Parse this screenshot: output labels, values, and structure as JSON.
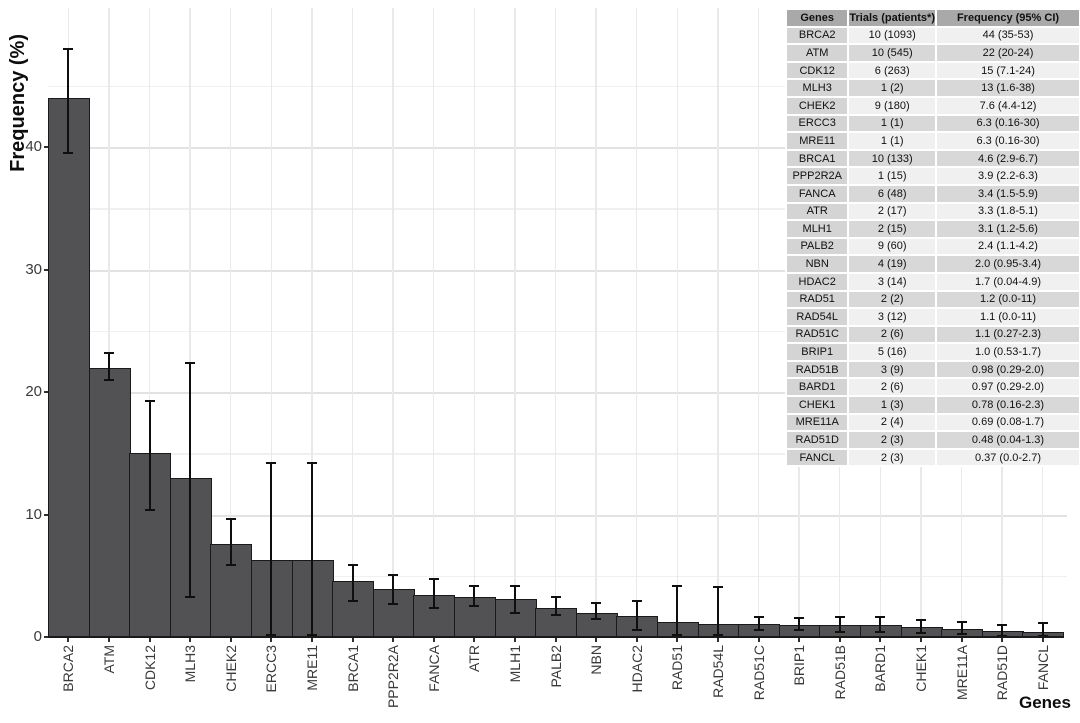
{
  "chart_data": {
    "type": "bar",
    "title": "",
    "xlabel": "Genes",
    "ylabel": "Frequency (%)",
    "ylim": [
      0,
      51.3
    ],
    "yticks": [
      0,
      10,
      20,
      30,
      40
    ],
    "minor_gridlines": [
      5,
      15,
      25,
      35,
      45
    ],
    "grid": true,
    "legend": "none",
    "categories": [
      "BRCA2",
      "ATM",
      "CDK12",
      "MLH3",
      "CHEK2",
      "ERCC3",
      "MRE11",
      "BRCA1",
      "PPP2R2A",
      "FANCA",
      "ATR",
      "MLH1",
      "PALB2",
      "NBN",
      "HDAC2",
      "RAD51",
      "RAD54L",
      "RAD51C",
      "BRIP1",
      "RAD51B",
      "BARD1",
      "CHEK1",
      "MRE11A",
      "RAD51D",
      "FANCL"
    ],
    "series": [
      {
        "name": "Frequency (%)",
        "values": [
          44,
          22,
          15,
          13,
          7.6,
          6.3,
          6.3,
          4.6,
          3.9,
          3.4,
          3.3,
          3.1,
          2.4,
          2.0,
          1.7,
          1.2,
          1.1,
          1.1,
          1.0,
          0.98,
          0.97,
          0.78,
          0.69,
          0.48,
          0.37
        ],
        "error_low": [
          39.5,
          21.0,
          10.4,
          3.3,
          5.9,
          0.15,
          0.15,
          2.9,
          2.7,
          2.4,
          2.5,
          2.0,
          1.8,
          1.5,
          0.55,
          0.15,
          0.15,
          0.55,
          0.6,
          0.4,
          0.4,
          0.3,
          0.25,
          0.12,
          0.05
        ],
        "error_high": [
          48.0,
          23.2,
          19.3,
          22.4,
          9.6,
          14.2,
          14.2,
          5.9,
          5.1,
          4.7,
          4.2,
          4.2,
          3.3,
          2.8,
          2.9,
          4.15,
          4.1,
          1.65,
          1.55,
          1.6,
          1.6,
          1.35,
          1.2,
          1.0,
          1.15
        ]
      }
    ],
    "colors": {
      "bar_fill": "#525254",
      "bar_border": "#1a1a1c",
      "error_bar": "#0f0f0f",
      "major_gridline": "#e2e2e2",
      "minor_gridline": "#f0f0f0",
      "vertical_gridline": "#e9e9e9",
      "axis_text": "#3a3a3a",
      "axis_line": "#1a1a1a"
    }
  },
  "table": {
    "headers": [
      "Genes",
      "Trials (patients*)",
      "Frequency (95% CI)"
    ],
    "rows": [
      [
        "BRCA2",
        "10 (1093)",
        "44 (35-53)"
      ],
      [
        "ATM",
        "10 (545)",
        "22 (20-24)"
      ],
      [
        "CDK12",
        "6 (263)",
        "15 (7.1-24)"
      ],
      [
        "MLH3",
        "1 (2)",
        "13 (1.6-38)"
      ],
      [
        "CHEK2",
        "9 (180)",
        "7.6 (4.4-12)"
      ],
      [
        "ERCC3",
        "1 (1)",
        "6.3 (0.16-30)"
      ],
      [
        "MRE11",
        "1 (1)",
        "6.3 (0.16-30)"
      ],
      [
        "BRCA1",
        "10 (133)",
        "4.6 (2.9-6.7)"
      ],
      [
        "PPP2R2A",
        "1 (15)",
        "3.9 (2.2-6.3)"
      ],
      [
        "FANCA",
        "6 (48)",
        "3.4 (1.5-5.9)"
      ],
      [
        "ATR",
        "2 (17)",
        "3.3 (1.8-5.1)"
      ],
      [
        "MLH1",
        "2 (15)",
        "3.1 (1.2-5.6)"
      ],
      [
        "PALB2",
        "9 (60)",
        "2.4 (1.1-4.2)"
      ],
      [
        "NBN",
        "4 (19)",
        "2.0 (0.95-3.4)"
      ],
      [
        "HDAC2",
        "3 (14)",
        "1.7 (0.04-4.9)"
      ],
      [
        "RAD51",
        "2 (2)",
        "1.2 (0.0-11)"
      ],
      [
        "RAD54L",
        "3 (12)",
        "1.1 (0.0-11)"
      ],
      [
        "RAD51C",
        "2 (6)",
        "1.1 (0.27-2.3)"
      ],
      [
        "BRIP1",
        "5 (16)",
        "1.0 (0.53-1.7)"
      ],
      [
        "RAD51B",
        "3 (9)",
        "0.98 (0.29-2.0)"
      ],
      [
        "BARD1",
        "2 (6)",
        "0.97 (0.29-2.0)"
      ],
      [
        "CHEK1",
        "1 (3)",
        "0.78 (0.16-2.3)"
      ],
      [
        "MRE11A",
        "2 (4)",
        "0.69 (0.08-1.7)"
      ],
      [
        "RAD51D",
        "2 (3)",
        "0.48 (0.04-1.3)"
      ],
      [
        "FANCL",
        "2 (3)",
        "0.37 (0.0-2.7)"
      ]
    ],
    "colors": {
      "header_bg": "#a9a9a9",
      "gene_col_bg": "#d4d4d4",
      "row_bg_odd": "#f0f0f0",
      "row_bg_even": "#d8d8d8",
      "cell_border": "#ffffff"
    }
  }
}
